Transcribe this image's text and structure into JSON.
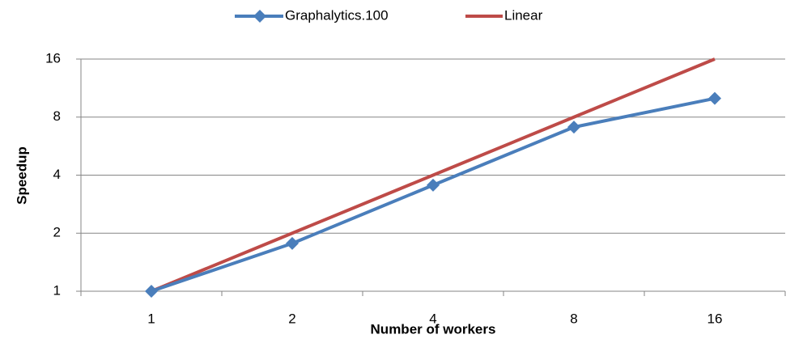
{
  "chart_data": {
    "type": "line",
    "x_label": "Number of workers",
    "y_label": "Speedup",
    "categories": [
      "1",
      "2",
      "4",
      "8",
      "16"
    ],
    "series": [
      {
        "name": "Graphalytics.100",
        "color": "#4a7ebb",
        "marker": "diamond",
        "values": [
          1,
          1.77,
          3.55,
          7.1,
          10
        ]
      },
      {
        "name": "Linear",
        "color": "#be4b48",
        "values": [
          1,
          2,
          4,
          8,
          16
        ]
      }
    ],
    "ylim": [
      1,
      16
    ],
    "yticks": [
      1,
      2,
      4,
      8,
      16
    ],
    "ylog": true,
    "grid": true,
    "legend": "top"
  }
}
